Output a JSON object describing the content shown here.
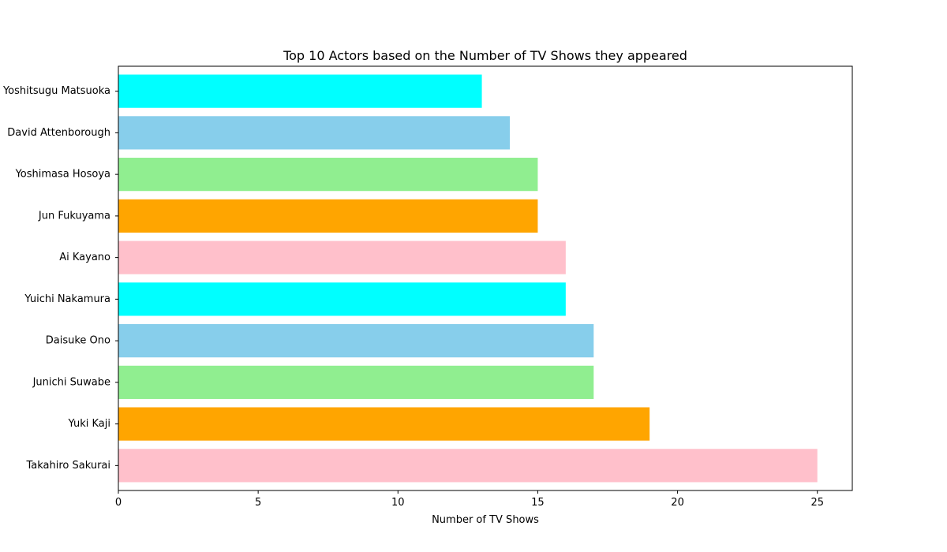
{
  "chart_data": {
    "type": "bar",
    "orientation": "horizontal",
    "title": "Top 10 Actors based on the Number of TV Shows they appeared",
    "xlabel": "Number of TV Shows",
    "ylabel": "",
    "xlim": [
      0,
      26.25
    ],
    "xticks": [
      0,
      5,
      10,
      15,
      20,
      25
    ],
    "grid": false,
    "categories": [
      "Takahiro Sakurai",
      "Yuki Kaji",
      "Junichi Suwabe",
      "Daisuke Ono",
      "Yuichi Nakamura",
      "Ai Kayano",
      "Jun Fukuyama",
      "Yoshimasa Hosoya",
      "David Attenborough",
      "Yoshitsugu Matsuoka"
    ],
    "values": [
      25,
      19,
      17,
      17,
      16,
      16,
      15,
      15,
      14,
      13
    ],
    "colors": [
      "#ffc0cb",
      "#ffa500",
      "#90ee90",
      "#87ceeb",
      "#00ffff",
      "#ffc0cb",
      "#ffa500",
      "#90ee90",
      "#87ceeb",
      "#00ffff"
    ]
  }
}
